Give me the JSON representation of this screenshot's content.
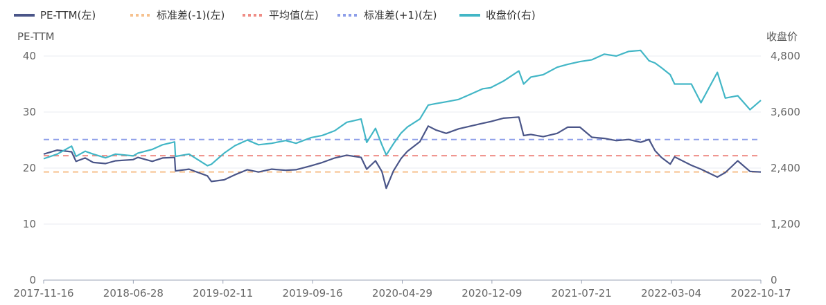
{
  "chart_data": {
    "type": "line",
    "title": "",
    "legend": {
      "position": "top-left",
      "items": [
        {
          "label": "PE-TTM(左)",
          "color": "#4a5588",
          "style": "solid"
        },
        {
          "label": "标准差(-1)(左)",
          "color": "#f6c18e",
          "style": "dotted"
        },
        {
          "label": "平均值(左)",
          "color": "#ef8d86",
          "style": "dotted"
        },
        {
          "label": "标准差(+1)(左)",
          "color": "#8d9ee9",
          "style": "dotted"
        },
        {
          "label": "收盘价(右)",
          "color": "#42b6c6",
          "style": "solid"
        }
      ]
    },
    "y_left": {
      "title": "PE-TTM",
      "min": 0,
      "max": 40,
      "ticks": [
        "0",
        "10",
        "20",
        "30",
        "40"
      ]
    },
    "y_right": {
      "title": "收盘价",
      "min": 0,
      "max": 4800,
      "ticks": [
        "0",
        "1,200",
        "2,400",
        "3,600",
        "4,800"
      ]
    },
    "x_ticks": [
      "2017-11-16",
      "2018-06-28",
      "2019-02-11",
      "2019-09-16",
      "2020-04-29",
      "2020-12-09",
      "2021-07-21",
      "2022-03-04",
      "2022-10-17"
    ],
    "grid": true,
    "reference_lines": [
      {
        "name": "标准差(-1)(左)",
        "value": 19.3
      },
      {
        "name": "平均值(左)",
        "value": 22.2
      },
      {
        "name": "标准差(+1)(左)",
        "value": 25.1
      }
    ],
    "series": [
      {
        "name": "PE-TTM(左)",
        "axis": "left",
        "x": [
          "2017-11-16",
          "2017-12-20",
          "2018-01-25",
          "2018-02-05",
          "2018-02-28",
          "2018-03-20",
          "2018-04-20",
          "2018-05-15",
          "2018-06-28",
          "2018-07-10",
          "2018-08-15",
          "2018-09-10",
          "2018-10-10",
          "2018-10-12",
          "2018-11-15",
          "2018-12-31",
          "2019-01-10",
          "2019-02-11",
          "2019-03-10",
          "2019-04-10",
          "2019-05-08",
          "2019-06-10",
          "2019-07-15",
          "2019-08-10",
          "2019-09-16",
          "2019-10-15",
          "2019-11-15",
          "2019-12-15",
          "2020-01-20",
          "2020-02-03",
          "2020-02-25",
          "2020-03-12",
          "2020-03-23",
          "2020-04-10",
          "2020-04-29",
          "2020-05-15",
          "2020-06-15",
          "2020-07-06",
          "2020-07-25",
          "2020-08-20",
          "2020-09-20",
          "2020-10-20",
          "2020-11-20",
          "2020-12-09",
          "2021-01-10",
          "2021-02-18",
          "2021-03-02",
          "2021-03-20",
          "2021-04-20",
          "2021-05-25",
          "2021-06-20",
          "2021-07-21",
          "2021-08-20",
          "2021-09-20",
          "2021-10-20",
          "2021-11-20",
          "2021-12-20",
          "2022-01-10",
          "2022-01-25",
          "2022-02-10",
          "2022-03-04",
          "2022-03-15",
          "2022-04-26",
          "2022-05-20",
          "2022-06-30",
          "2022-07-20",
          "2022-08-20",
          "2022-09-20",
          "2022-10-17"
        ],
        "values": [
          22.5,
          23.2,
          22.9,
          21.2,
          21.8,
          21.0,
          20.8,
          21.3,
          21.5,
          21.9,
          21.2,
          21.8,
          21.9,
          19.5,
          19.8,
          18.6,
          17.6,
          17.9,
          18.8,
          19.7,
          19.3,
          19.8,
          19.6,
          19.7,
          20.4,
          21.0,
          21.8,
          22.3,
          21.9,
          19.8,
          21.3,
          19.4,
          16.4,
          19.5,
          21.7,
          23.0,
          24.7,
          27.5,
          26.8,
          26.2,
          27.0,
          27.5,
          28.0,
          28.3,
          28.9,
          29.1,
          25.8,
          26.0,
          25.6,
          26.2,
          27.3,
          27.3,
          25.5,
          25.3,
          24.9,
          25.1,
          24.6,
          25.1,
          23.1,
          21.9,
          20.7,
          22.0,
          20.5,
          19.8,
          18.4,
          19.2,
          21.3,
          19.4,
          19.3
        ]
      },
      {
        "name": "收盘价(右)",
        "axis": "right",
        "x": [
          "2017-11-16",
          "2017-12-20",
          "2018-01-25",
          "2018-02-05",
          "2018-02-28",
          "2018-03-20",
          "2018-04-20",
          "2018-05-15",
          "2018-06-28",
          "2018-07-10",
          "2018-08-15",
          "2018-09-10",
          "2018-10-10",
          "2018-10-12",
          "2018-11-15",
          "2018-12-31",
          "2019-01-10",
          "2019-02-11",
          "2019-03-10",
          "2019-04-10",
          "2019-05-08",
          "2019-06-10",
          "2019-07-15",
          "2019-08-10",
          "2019-09-16",
          "2019-10-15",
          "2019-11-15",
          "2019-12-15",
          "2020-01-20",
          "2020-02-03",
          "2020-02-25",
          "2020-03-12",
          "2020-03-23",
          "2020-04-10",
          "2020-04-29",
          "2020-05-15",
          "2020-06-15",
          "2020-07-06",
          "2020-07-25",
          "2020-08-20",
          "2020-09-20",
          "2020-10-20",
          "2020-11-20",
          "2020-12-09",
          "2021-01-10",
          "2021-02-18",
          "2021-03-02",
          "2021-03-20",
          "2021-04-20",
          "2021-05-25",
          "2021-06-20",
          "2021-07-21",
          "2021-08-20",
          "2021-09-20",
          "2021-10-20",
          "2021-11-20",
          "2021-12-20",
          "2022-01-10",
          "2022-01-25",
          "2022-02-10",
          "2022-03-04",
          "2022-03-15",
          "2022-04-26",
          "2022-05-20",
          "2022-06-30",
          "2022-07-20",
          "2022-08-20",
          "2022-09-20",
          "2022-10-17"
        ],
        "values": [
          2600,
          2700,
          2870,
          2650,
          2760,
          2700,
          2620,
          2700,
          2660,
          2720,
          2800,
          2900,
          2960,
          2650,
          2700,
          2450,
          2480,
          2720,
          2880,
          3000,
          2900,
          2930,
          2990,
          2930,
          3050,
          3100,
          3200,
          3380,
          3450,
          2950,
          3250,
          2900,
          2680,
          2920,
          3150,
          3280,
          3450,
          3750,
          3780,
          3820,
          3870,
          3980,
          4100,
          4120,
          4260,
          4480,
          4200,
          4350,
          4400,
          4560,
          4620,
          4680,
          4720,
          4840,
          4800,
          4900,
          4920,
          4700,
          4650,
          4550,
          4400,
          4200,
          4200,
          3800,
          4450,
          3900,
          3950,
          3650,
          3850
        ]
      }
    ]
  }
}
